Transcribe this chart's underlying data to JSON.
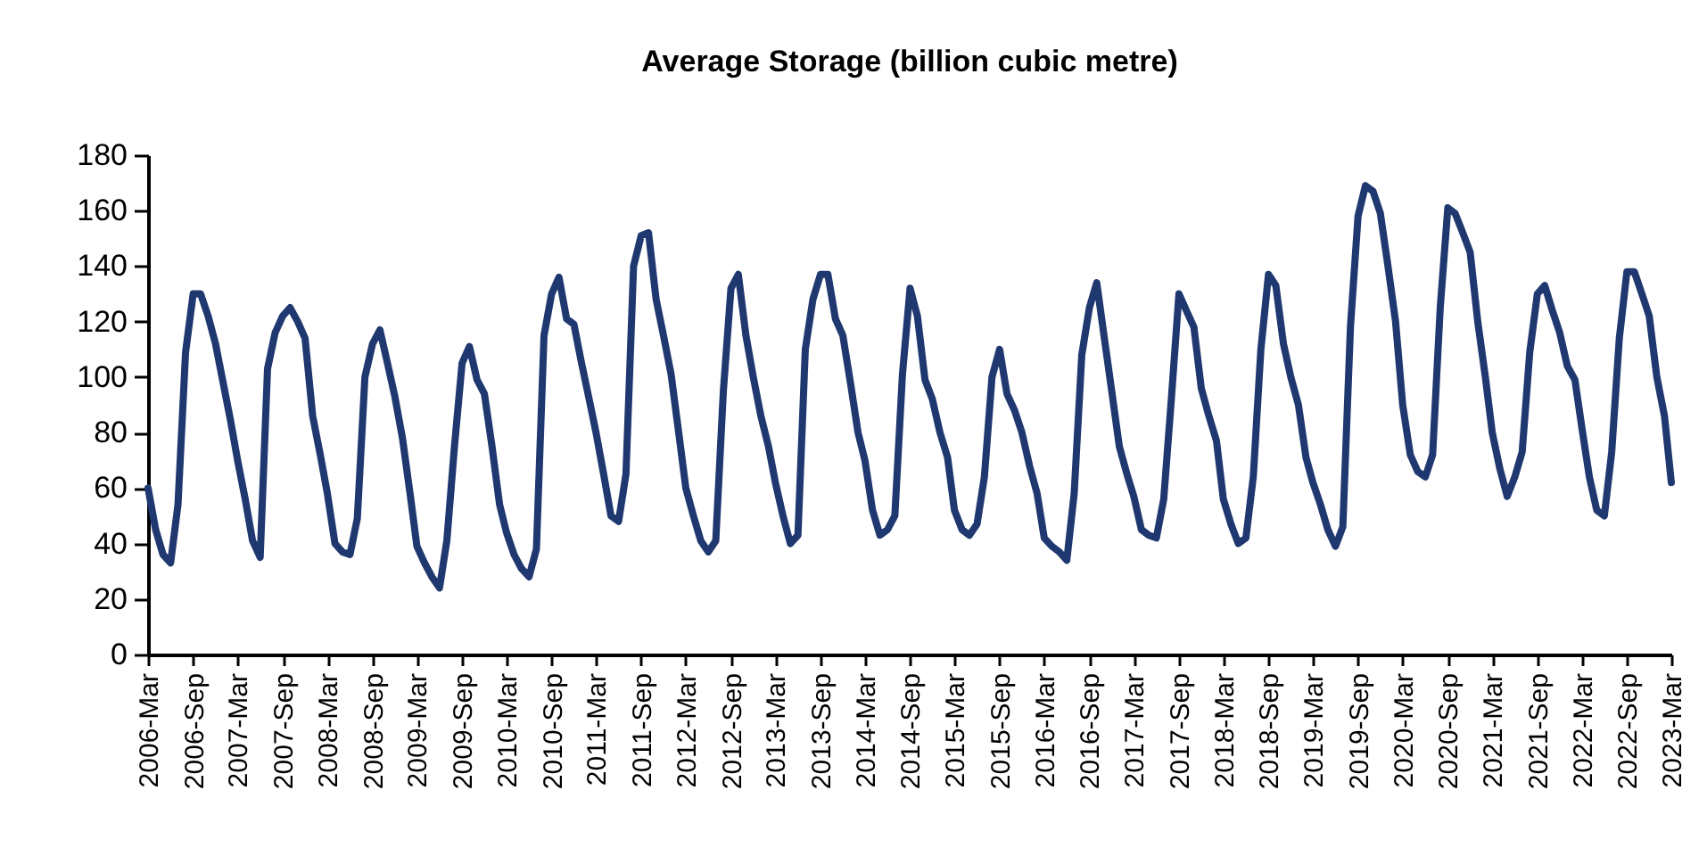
{
  "chart_data": {
    "type": "line",
    "title": "Average Storage (billion cubic metre)",
    "x": [
      "2006-03",
      "2006-04",
      "2006-05",
      "2006-06",
      "2006-07",
      "2006-08",
      "2006-09",
      "2006-10",
      "2006-11",
      "2006-12",
      "2007-01",
      "2007-02",
      "2007-03",
      "2007-04",
      "2007-05",
      "2007-06",
      "2007-07",
      "2007-08",
      "2007-09",
      "2007-10",
      "2007-11",
      "2007-12",
      "2008-01",
      "2008-02",
      "2008-03",
      "2008-04",
      "2008-05",
      "2008-06",
      "2008-07",
      "2008-08",
      "2008-09",
      "2008-10",
      "2008-11",
      "2008-12",
      "2009-01",
      "2009-02",
      "2009-03",
      "2009-04",
      "2009-05",
      "2009-06",
      "2009-07",
      "2009-08",
      "2009-09",
      "2009-10",
      "2009-11",
      "2009-12",
      "2010-01",
      "2010-02",
      "2010-03",
      "2010-04",
      "2010-05",
      "2010-06",
      "2010-07",
      "2010-08",
      "2010-09",
      "2010-10",
      "2010-11",
      "2010-12",
      "2011-01",
      "2011-02",
      "2011-03",
      "2011-04",
      "2011-05",
      "2011-06",
      "2011-07",
      "2011-08",
      "2011-09",
      "2011-10",
      "2011-11",
      "2011-12",
      "2012-01",
      "2012-02",
      "2012-03",
      "2012-04",
      "2012-05",
      "2012-06",
      "2012-07",
      "2012-08",
      "2012-09",
      "2012-10",
      "2012-11",
      "2012-12",
      "2013-01",
      "2013-02",
      "2013-03",
      "2013-04",
      "2013-05",
      "2013-06",
      "2013-07",
      "2013-08",
      "2013-09",
      "2013-10",
      "2013-11",
      "2013-12",
      "2014-01",
      "2014-02",
      "2014-03",
      "2014-04",
      "2014-05",
      "2014-06",
      "2014-07",
      "2014-08",
      "2014-09",
      "2014-10",
      "2014-11",
      "2014-12",
      "2015-01",
      "2015-02",
      "2015-03",
      "2015-04",
      "2015-05",
      "2015-06",
      "2015-07",
      "2015-08",
      "2015-09",
      "2015-10",
      "2015-11",
      "2015-12",
      "2016-01",
      "2016-02",
      "2016-03",
      "2016-04",
      "2016-05",
      "2016-06",
      "2016-07",
      "2016-08",
      "2016-09",
      "2016-10",
      "2016-11",
      "2016-12",
      "2017-01",
      "2017-02",
      "2017-03",
      "2017-04",
      "2017-05",
      "2017-06",
      "2017-07",
      "2017-08",
      "2017-09",
      "2017-10",
      "2017-11",
      "2017-12",
      "2018-01",
      "2018-02",
      "2018-03",
      "2018-04",
      "2018-05",
      "2018-06",
      "2018-07",
      "2018-08",
      "2018-09",
      "2018-10",
      "2018-11",
      "2018-12",
      "2019-01",
      "2019-02",
      "2019-03",
      "2019-04",
      "2019-05",
      "2019-06",
      "2019-07",
      "2019-08",
      "2019-09",
      "2019-10",
      "2019-11",
      "2019-12",
      "2020-01",
      "2020-02",
      "2020-03",
      "2020-04",
      "2020-05",
      "2020-06",
      "2020-07",
      "2020-08",
      "2020-09",
      "2020-10",
      "2020-11",
      "2020-12",
      "2021-01",
      "2021-02",
      "2021-03",
      "2021-04",
      "2021-05",
      "2021-06",
      "2021-07",
      "2021-08",
      "2021-09",
      "2021-10",
      "2021-11",
      "2021-12",
      "2022-01",
      "2022-02",
      "2022-03",
      "2022-04",
      "2022-05",
      "2022-06",
      "2022-07",
      "2022-08",
      "2022-09",
      "2022-10",
      "2022-11",
      "2022-12",
      "2023-01",
      "2023-02",
      "2023-03"
    ],
    "series": [
      {
        "color": "#1f3870",
        "values": [
          60,
          45,
          36,
          33,
          54,
          109,
          130,
          130,
          122,
          112,
          98,
          84,
          70,
          56,
          41,
          35,
          103,
          116,
          122,
          125,
          120,
          114,
          86,
          72,
          58,
          40,
          37,
          36,
          49,
          100,
          112,
          117,
          105,
          93,
          78,
          58,
          39,
          33,
          28,
          24,
          41,
          75,
          105,
          111,
          99,
          94,
          75,
          54,
          44,
          36,
          31,
          28,
          38,
          115,
          130,
          136,
          121,
          119,
          105,
          92,
          80,
          65,
          50,
          48,
          65,
          140,
          151,
          152,
          128,
          115,
          101,
          80,
          60,
          50,
          41,
          37,
          41,
          95,
          132,
          137,
          115,
          100,
          86,
          75,
          62,
          50,
          40,
          43,
          110,
          128,
          137,
          137,
          121,
          115,
          98,
          80,
          70,
          52,
          43,
          45,
          50,
          101,
          132,
          122,
          99,
          92,
          80,
          71,
          52,
          45,
          43,
          47,
          64,
          100,
          110,
          94,
          88,
          80,
          68,
          58,
          42,
          39,
          37,
          34,
          58,
          108,
          125,
          134,
          114,
          95,
          75,
          65,
          57,
          45,
          43,
          42,
          56,
          92,
          130,
          124,
          118,
          96,
          86,
          77,
          56,
          47,
          40,
          42,
          64,
          110,
          137,
          133,
          112,
          100,
          90,
          71,
          62,
          54,
          45,
          39,
          46,
          118,
          158,
          169,
          167,
          159,
          140,
          120,
          90,
          72,
          66,
          64,
          72,
          125,
          161,
          159,
          152,
          145,
          120,
          100,
          80,
          67,
          57,
          64,
          73,
          109,
          130,
          133,
          124,
          116,
          104,
          99,
          82,
          64,
          52,
          50,
          73,
          114,
          138,
          138,
          130,
          122,
          100,
          86,
          62
        ]
      }
    ],
    "xlim": [
      "2006-03",
      "2023-03"
    ],
    "xticks": [
      {
        "value": "2006-03",
        "label": "2006-Mar"
      },
      {
        "value": "2006-09",
        "label": "2006-Sep"
      },
      {
        "value": "2007-03",
        "label": "2007-Mar"
      },
      {
        "value": "2007-09",
        "label": "2007-Sep"
      },
      {
        "value": "2008-03",
        "label": "2008-Mar"
      },
      {
        "value": "2008-09",
        "label": "2008-Sep"
      },
      {
        "value": "2009-03",
        "label": "2009-Mar"
      },
      {
        "value": "2009-09",
        "label": "2009-Sep"
      },
      {
        "value": "2010-03",
        "label": "2010-Mar"
      },
      {
        "value": "2010-09",
        "label": "2010-Sep"
      },
      {
        "value": "2011-03",
        "label": "2011-Mar"
      },
      {
        "value": "2011-09",
        "label": "2011-Sep"
      },
      {
        "value": "2012-03",
        "label": "2012-Mar"
      },
      {
        "value": "2012-09",
        "label": "2012-Sep"
      },
      {
        "value": "2013-03",
        "label": "2013-Mar"
      },
      {
        "value": "2013-09",
        "label": "2013-Sep"
      },
      {
        "value": "2014-03",
        "label": "2014-Mar"
      },
      {
        "value": "2014-09",
        "label": "2014-Sep"
      },
      {
        "value": "2015-03",
        "label": "2015-Mar"
      },
      {
        "value": "2015-09",
        "label": "2015-Sep"
      },
      {
        "value": "2016-03",
        "label": "2016-Mar"
      },
      {
        "value": "2016-09",
        "label": "2016-Sep"
      },
      {
        "value": "2017-03",
        "label": "2017-Mar"
      },
      {
        "value": "2017-09",
        "label": "2017-Sep"
      },
      {
        "value": "2018-03",
        "label": "2018-Mar"
      },
      {
        "value": "2018-09",
        "label": "2018-Sep"
      },
      {
        "value": "2019-03",
        "label": "2019-Mar"
      },
      {
        "value": "2019-09",
        "label": "2019-Sep"
      },
      {
        "value": "2020-03",
        "label": "2020-Mar"
      },
      {
        "value": "2020-09",
        "label": "2020-Sep"
      },
      {
        "value": "2021-03",
        "label": "2021-Mar"
      },
      {
        "value": "2021-09",
        "label": "2021-Sep"
      },
      {
        "value": "2022-03",
        "label": "2022-Mar"
      },
      {
        "value": "2022-09",
        "label": "2022-Sep"
      },
      {
        "value": "2023-03",
        "label": "2023-Mar"
      }
    ],
    "ylim": [
      0,
      180
    ],
    "yticks": [
      0,
      20,
      40,
      60,
      80,
      100,
      120,
      140,
      160,
      180
    ],
    "grid": false
  }
}
